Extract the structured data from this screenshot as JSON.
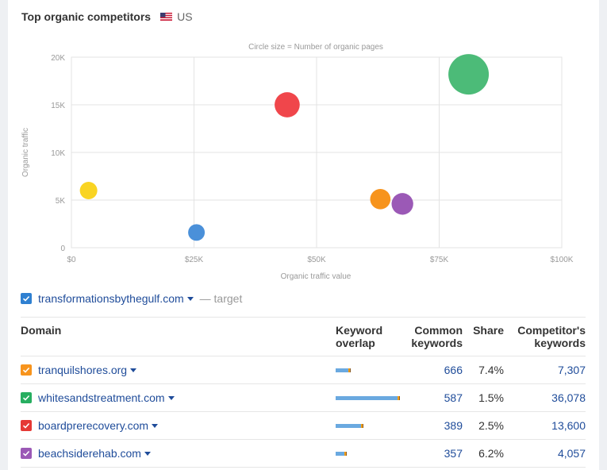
{
  "header": {
    "title": "Top organic competitors",
    "country": "US",
    "flag_icon": "us-flag-icon"
  },
  "chart_data": {
    "type": "scatter",
    "title": "Circle size = Number of organic pages",
    "xlabel": "Organic traffic value",
    "ylabel": "Organic traffic",
    "xlim": [
      0,
      100000
    ],
    "ylim": [
      0,
      20000
    ],
    "x_ticks": [
      "$0",
      "$25K",
      "$50K",
      "$75K",
      "$100K"
    ],
    "y_ticks": [
      "0",
      "5K",
      "10K",
      "15K",
      "20K"
    ],
    "grid": true,
    "points": [
      {
        "x": 3500,
        "y": 6000,
        "color": "#f9d423",
        "size": 1
      },
      {
        "x": 25500,
        "y": 1600,
        "color": "#4a90d9",
        "size": 0.9
      },
      {
        "x": 44000,
        "y": 15000,
        "color": "#f0464b",
        "size": 2.2
      },
      {
        "x": 63000,
        "y": 5100,
        "color": "#f7941d",
        "size": 1.4
      },
      {
        "x": 67500,
        "y": 4600,
        "color": "#9b59b6",
        "size": 1.6
      },
      {
        "x": 81000,
        "y": 18200,
        "color": "#4cbb78",
        "size": 6
      }
    ]
  },
  "target": {
    "domain": "transformationsbythegulf.com",
    "suffix": "— target",
    "checkbox_color": "#2f80d1"
  },
  "table": {
    "headers": {
      "domain": "Domain",
      "overlap_1": "Keyword",
      "overlap_2": "overlap",
      "common_1": "Common",
      "common_2": "keywords",
      "share": "Share",
      "comp_1": "Competitor's",
      "comp_2": "keywords"
    },
    "rows": [
      {
        "domain": "tranquilshores.org",
        "color": "#f7941d",
        "overlap": 0.2,
        "common": "666",
        "share": "7.4%",
        "competitor": "7,307"
      },
      {
        "domain": "whitesandstreatment.com",
        "color": "#27ae60",
        "overlap": 0.98,
        "common": "587",
        "share": "1.5%",
        "competitor": "36,078"
      },
      {
        "domain": "boardprerecovery.com",
        "color": "#e53935",
        "overlap": 0.4,
        "common": "389",
        "share": "2.5%",
        "competitor": "13,600"
      },
      {
        "domain": "beachsiderehab.com",
        "color": "#9b59b6",
        "overlap": 0.14,
        "common": "357",
        "share": "6.2%",
        "competitor": "4,057"
      }
    ]
  }
}
